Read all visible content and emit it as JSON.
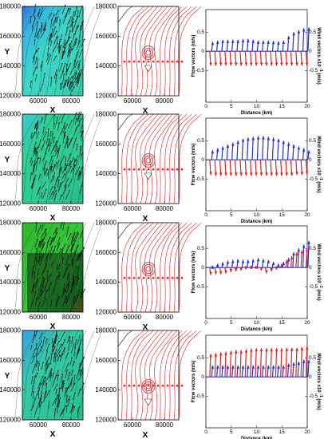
{
  "contour_axes": {
    "xlabel": "X",
    "ylabel": "Y",
    "xticks": [
      "60000",
      "80000"
    ],
    "yticks": [
      "120000",
      "140000",
      "160000",
      "180000"
    ]
  },
  "stream_axes": {
    "xlabel": "X",
    "yticks": [
      "120000",
      "140000",
      "160000",
      "180000"
    ],
    "xticks": [
      "60000",
      "80000"
    ]
  },
  "vector_axes": {
    "xlabel": "Distance (km)",
    "ylabel_left": "Flow vectors (m/s)",
    "ylabel_right": "Wind vectors x10",
    "ylabel_right_exp": "-1",
    "ylabel_right_unit": "(m/s)",
    "left_ticks": [
      "0.5",
      "0",
      "-0.5"
    ],
    "right_ticks": [
      "0.5",
      "0",
      "-0.5"
    ],
    "xticks": [
      "0",
      "5",
      "10",
      "15",
      "20"
    ]
  },
  "colors": {
    "flow": "#e32020",
    "wind": "#2330d8",
    "stream": "#e0191b"
  },
  "chart_data": [
    {
      "type": "quiver",
      "row": 1,
      "x_range_km": [
        0,
        20
      ],
      "distance_km": [
        1,
        2,
        3,
        4,
        5,
        6,
        7,
        8,
        9,
        10,
        11,
        12,
        13,
        14,
        15,
        16,
        17,
        18,
        19,
        20
      ],
      "wind_v": [
        0.25,
        0.28,
        0.3,
        0.3,
        0.3,
        0.3,
        0.32,
        0.32,
        0.3,
        0.28,
        0.28,
        0.28,
        0.27,
        0.26,
        0.28,
        0.4,
        0.5,
        0.55,
        0.6,
        0.62
      ],
      "flow_v": [
        -0.38,
        -0.38,
        -0.38,
        -0.38,
        -0.38,
        -0.38,
        -0.38,
        -0.38,
        -0.38,
        -0.38,
        -0.38,
        -0.38,
        -0.38,
        -0.38,
        -0.38,
        -0.38,
        -0.38,
        -0.38,
        -0.38,
        -0.38
      ]
    },
    {
      "type": "quiver",
      "row": 2,
      "x_range_km": [
        0,
        20
      ],
      "distance_km": [
        1,
        2,
        3,
        4,
        5,
        6,
        7,
        8,
        9,
        10,
        11,
        12,
        13,
        14,
        15,
        16,
        17,
        18,
        19,
        20
      ],
      "wind_v": [
        0.25,
        0.3,
        0.35,
        0.4,
        0.45,
        0.5,
        0.55,
        0.58,
        0.6,
        0.62,
        0.62,
        0.6,
        0.58,
        0.55,
        0.5,
        0.45,
        0.4,
        0.35,
        0.3,
        0.25
      ],
      "flow_v": [
        -0.4,
        -0.42,
        -0.42,
        -0.42,
        -0.42,
        -0.42,
        -0.42,
        -0.42,
        -0.42,
        -0.42,
        -0.42,
        -0.42,
        -0.42,
        -0.42,
        -0.42,
        -0.42,
        -0.42,
        -0.4,
        -0.4,
        -0.38
      ]
    },
    {
      "type": "quiver",
      "row": 3,
      "x_range_km": [
        0,
        20
      ],
      "distance_km": [
        1,
        2,
        3,
        4,
        5,
        6,
        7,
        8,
        9,
        10,
        11,
        12,
        13,
        14,
        15,
        16,
        17,
        18,
        19,
        20
      ],
      "wind_v": [
        0.05,
        0.1,
        0.14,
        0.18,
        0.2,
        0.22,
        0.2,
        0.2,
        0.22,
        0.25,
        0.22,
        0.2,
        0.15,
        0.1,
        0.15,
        0.25,
        0.4,
        0.5,
        0.6,
        0.7
      ],
      "flow_v": [
        -0.2,
        -0.18,
        -0.18,
        -0.16,
        -0.12,
        -0.1,
        -0.08,
        -0.05,
        0.05,
        0.05,
        -0.08,
        -0.15,
        -0.1,
        -0.05,
        0.1,
        0.2,
        0.3,
        0.4,
        0.45,
        0.5
      ]
    },
    {
      "type": "quiver",
      "row": 4,
      "x_range_km": [
        0,
        20
      ],
      "distance_km": [
        1,
        2,
        3,
        4,
        5,
        6,
        7,
        8,
        9,
        10,
        11,
        12,
        13,
        14,
        15,
        16,
        17,
        18,
        19,
        20
      ],
      "wind_v": [
        0.3,
        0.3,
        0.3,
        0.3,
        0.3,
        0.3,
        0.3,
        0.3,
        0.3,
        0.3,
        0.3,
        0.3,
        0.3,
        0.3,
        0.3,
        0.35,
        0.38,
        0.4,
        0.45,
        0.45
      ],
      "flow_v": [
        0.6,
        0.62,
        0.64,
        0.66,
        0.68,
        0.7,
        0.7,
        0.72,
        0.74,
        0.75,
        0.75,
        0.75,
        0.75,
        0.75,
        0.75,
        0.76,
        0.76,
        0.76,
        0.78,
        0.8
      ]
    }
  ]
}
